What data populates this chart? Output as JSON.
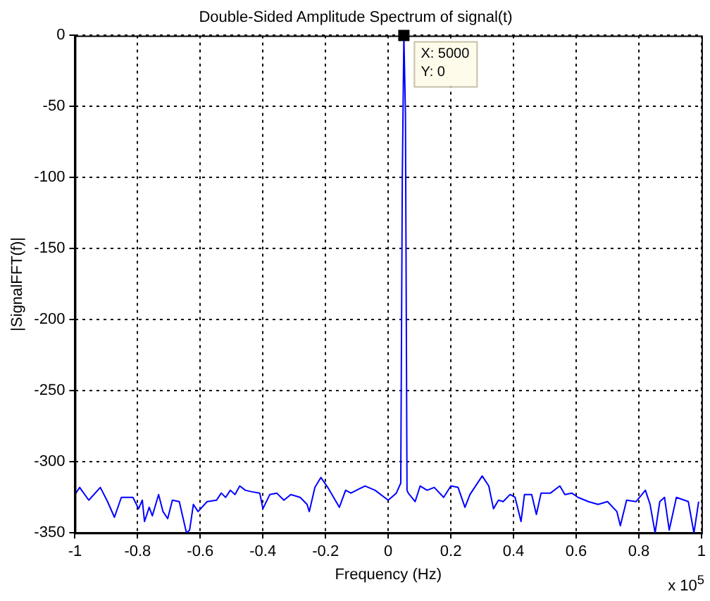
{
  "chart_data": {
    "type": "line",
    "title": "Double-Sided Amplitude Spectrum of signal(t)",
    "xlabel": "Frequency (Hz)",
    "ylabel": "|SignalFFT(f)|",
    "x": [
      -1,
      -0.985,
      -0.956,
      -0.919,
      -0.896,
      -0.874,
      -0.852,
      -0.815,
      -0.797,
      -0.785,
      -0.778,
      -0.763,
      -0.753,
      -0.733,
      -0.719,
      -0.704,
      -0.689,
      -0.667,
      -0.644,
      -0.634,
      -0.622,
      -0.607,
      -0.578,
      -0.548,
      -0.533,
      -0.519,
      -0.504,
      -0.489,
      -0.474,
      -0.456,
      -0.437,
      -0.41,
      -0.4,
      -0.378,
      -0.356,
      -0.333,
      -0.311,
      -0.281,
      -0.259,
      -0.252,
      -0.234,
      -0.215,
      -0.193,
      -0.156,
      -0.136,
      -0.119,
      -0.074,
      -0.042,
      0,
      0.026,
      0.04,
      0.045,
      0.05,
      0.055,
      0.06,
      0.064,
      0.086,
      0.102,
      0.124,
      0.147,
      0.177,
      0.2,
      0.223,
      0.245,
      0.261,
      0.3,
      0.321,
      0.336,
      0.352,
      0.367,
      0.389,
      0.405,
      0.424,
      0.435,
      0.458,
      0.473,
      0.488,
      0.518,
      0.548,
      0.564,
      0.586,
      0.606,
      0.639,
      0.67,
      0.7,
      0.73,
      0.741,
      0.761,
      0.791,
      0.821,
      0.836,
      0.852,
      0.867,
      0.882,
      0.897,
      0.92,
      0.958,
      0.976,
      0.991
    ],
    "series": [
      {
        "color": "#0000ff",
        "values": [
          -323,
          -318,
          -327,
          -318,
          -328,
          -339,
          -325,
          -325,
          -333,
          -327,
          -342,
          -332,
          -338,
          -323,
          -335,
          -340,
          -327,
          -328,
          -350,
          -348,
          -330,
          -335,
          -328,
          -327,
          -322,
          -325,
          -320,
          -323,
          -317,
          -320,
          -321,
          -322,
          -333,
          -323,
          -322,
          -327,
          -323,
          -325,
          -330,
          -335,
          -318,
          -311,
          -318,
          -332,
          -320,
          -322,
          -317,
          -320,
          -327,
          -322,
          -315,
          -100,
          0,
          -55,
          -320,
          -322,
          -328,
          -317,
          -320,
          -318,
          -325,
          -317,
          -318,
          -332,
          -323,
          -310,
          -317,
          -333,
          -327,
          -328,
          -323,
          -325,
          -342,
          -323,
          -323,
          -337,
          -322,
          -322,
          -317,
          -323,
          -322,
          -325,
          -328,
          -330,
          -328,
          -335,
          -345,
          -327,
          -328,
          -320,
          -330,
          -350,
          -328,
          -325,
          -348,
          -325,
          -328,
          -350,
          -328
        ]
      }
    ],
    "xlim": [
      -1,
      1
    ],
    "xticks": [
      -1,
      -0.8,
      -0.6,
      -0.4,
      -0.2,
      0,
      0.2,
      0.4,
      0.6,
      0.8,
      1
    ],
    "ylim": [
      -350,
      0
    ],
    "yticks": [
      -350,
      -300,
      -250,
      -200,
      -150,
      -100,
      -50,
      0
    ],
    "grid": true,
    "legend": false,
    "marker": "none",
    "line_style": "solid",
    "annotations": [
      {
        "text": "X: 5000\nY: 0",
        "x": 0.05,
        "y": 0
      },
      "x 10$^{5}$"
    ]
  }
}
